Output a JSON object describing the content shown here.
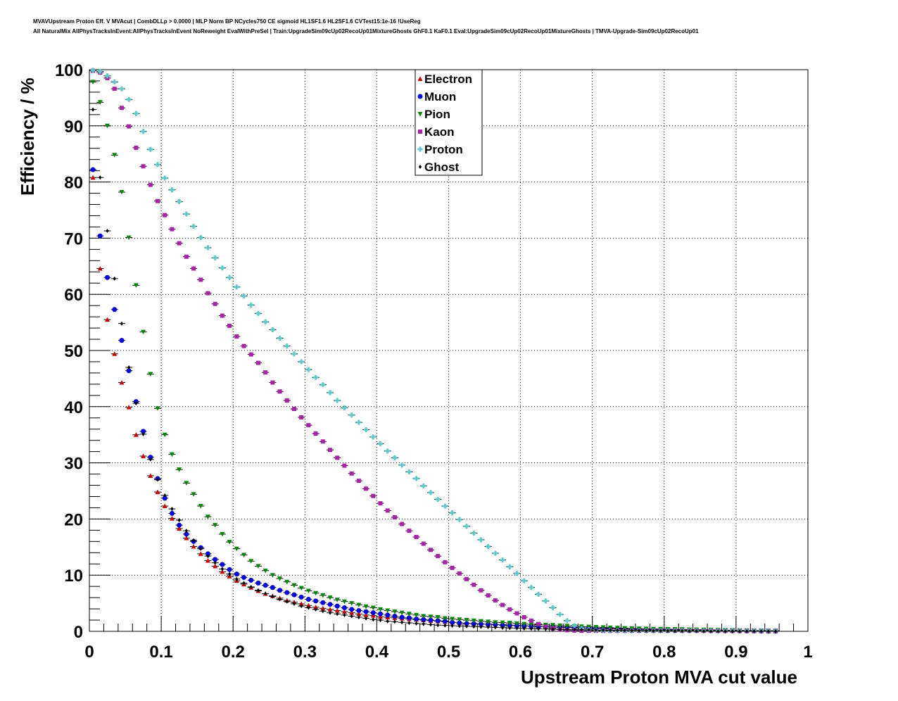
{
  "chart_data": {
    "type": "scatter",
    "title_line1": "MVAVUpstream Proton Eff. V MVAcut | CombDLLp > 0.0000 | MLP Norm BP NCycles750 CE sigmoid HL1SF1.6 HL2SF1.6 CVTest15:1e-16 !UseReg",
    "title_line2": "All NaturalMix AllPhysTracksInEvent:AllPhysTracksInEvent NoReweight EvalWithPreSel | Train:UpgradeSim09cUp02RecoUp01MixtureGhosts GhF0.1 KaF0.1 Eval:UpgradeSim09cUp02RecoUp01MixtureGhosts | TMVA-Upgrade-Sim09cUp02RecoUp01",
    "xlabel": "Upstream Proton MVA cut value",
    "ylabel": "Efficiency / %",
    "xlim": [
      0,
      1
    ],
    "ylim": [
      0,
      100
    ],
    "x_ticks": [
      "0",
      "0.1",
      "0.2",
      "0.3",
      "0.4",
      "0.5",
      "0.6",
      "0.7",
      "0.8",
      "0.9",
      "1"
    ],
    "y_ticks": [
      "0",
      "10",
      "20",
      "30",
      "40",
      "50",
      "60",
      "70",
      "80",
      "90",
      "100"
    ],
    "grid": true,
    "legend_position": "top-center",
    "x": [
      0.005,
      0.015,
      0.025,
      0.035,
      0.045,
      0.055,
      0.065,
      0.075,
      0.085,
      0.095,
      0.105,
      0.115,
      0.125,
      0.135,
      0.145,
      0.155,
      0.165,
      0.175,
      0.185,
      0.195,
      0.205,
      0.215,
      0.225,
      0.235,
      0.245,
      0.255,
      0.265,
      0.275,
      0.285,
      0.295,
      0.305,
      0.315,
      0.325,
      0.335,
      0.345,
      0.355,
      0.365,
      0.375,
      0.385,
      0.395,
      0.405,
      0.415,
      0.425,
      0.435,
      0.445,
      0.455,
      0.465,
      0.475,
      0.485,
      0.495,
      0.505,
      0.515,
      0.525,
      0.535,
      0.545,
      0.555,
      0.565,
      0.575,
      0.585,
      0.595,
      0.605,
      0.615,
      0.625,
      0.635,
      0.645,
      0.655,
      0.665,
      0.675,
      0.685,
      0.695,
      0.705,
      0.715,
      0.725,
      0.735,
      0.745,
      0.755,
      0.765,
      0.775,
      0.785,
      0.795,
      0.805,
      0.815,
      0.825,
      0.835,
      0.845,
      0.855,
      0.865,
      0.875,
      0.885,
      0.895,
      0.905,
      0.915,
      0.925,
      0.935,
      0.945,
      0.955
    ],
    "series": [
      {
        "name": "Electron",
        "color": "#cc0000",
        "marker": "triangle-up",
        "values": [
          80.8,
          64.6,
          55.5,
          49.4,
          44.3,
          39.9,
          35.0,
          31.2,
          27.7,
          24.8,
          22.3,
          20.1,
          18.3,
          16.6,
          15.1,
          13.8,
          12.6,
          11.6,
          10.6,
          9.8,
          9.0,
          8.4,
          7.8,
          7.2,
          6.7,
          6.3,
          5.9,
          5.5,
          5.2,
          4.9,
          4.6,
          4.3,
          4.1,
          3.9,
          3.7,
          3.5,
          3.3,
          3.1,
          2.9,
          2.8,
          2.6,
          2.5,
          2.4,
          2.3,
          2.2,
          2.1,
          2.0,
          1.9,
          1.8,
          1.7,
          1.6,
          1.5,
          1.45,
          1.4,
          1.3,
          1.25,
          1.2,
          1.15,
          1.1,
          1.05,
          1.0,
          0.95,
          0.9,
          0.85,
          0.8,
          0.76,
          0.72,
          0.68,
          0.64,
          0.6,
          0.56,
          0.53,
          0.5,
          0.47,
          0.44,
          0.41,
          0.38,
          0.36,
          0.34,
          0.32,
          0.3,
          0.28,
          0.26,
          0.24,
          0.22,
          0.2,
          0.18,
          0.16,
          0.14,
          0.12,
          0.1,
          0.08,
          0.07,
          0.06,
          0.05,
          0.04
        ]
      },
      {
        "name": "Muon",
        "color": "#0000dd",
        "marker": "circle",
        "values": [
          82.2,
          70.4,
          63.0,
          57.3,
          51.8,
          46.4,
          40.9,
          35.6,
          31.0,
          27.2,
          23.7,
          21.0,
          18.9,
          17.3,
          16.0,
          14.9,
          13.8,
          12.8,
          11.9,
          11.0,
          10.2,
          9.6,
          9.1,
          8.6,
          8.2,
          7.8,
          7.3,
          6.9,
          6.5,
          6.1,
          5.7,
          5.4,
          5.1,
          4.8,
          4.5,
          4.2,
          3.9,
          3.7,
          3.5,
          3.3,
          3.1,
          2.9,
          2.7,
          2.5,
          2.4,
          2.2,
          2.1,
          2.0,
          1.9,
          1.8,
          1.6,
          1.5,
          1.4,
          1.35,
          1.3,
          1.25,
          1.2,
          1.1,
          1.05,
          1.0,
          0.95,
          0.9,
          0.85,
          0.8,
          0.75,
          0.7,
          0.65,
          0.6,
          0.56,
          0.52,
          0.48,
          0.45,
          0.42,
          0.39,
          0.36,
          0.33,
          0.3,
          0.28,
          0.26,
          0.24,
          0.22,
          0.2,
          0.18,
          0.16,
          0.14,
          0.12,
          0.1,
          0.09,
          0.08,
          0.07,
          0.06,
          0.05,
          0.04,
          0.03,
          0.02,
          0.01
        ]
      },
      {
        "name": "Pion",
        "color": "#008800",
        "marker": "triangle-down",
        "values": [
          97.8,
          94.2,
          90.0,
          84.8,
          78.2,
          70.1,
          61.6,
          53.3,
          45.8,
          39.7,
          35.0,
          31.5,
          28.8,
          26.4,
          24.4,
          22.3,
          20.4,
          18.9,
          17.3,
          15.9,
          14.7,
          13.6,
          12.5,
          11.6,
          10.8,
          10.0,
          9.4,
          8.8,
          8.2,
          7.7,
          7.2,
          6.8,
          6.4,
          6.0,
          5.6,
          5.3,
          5.0,
          4.7,
          4.4,
          4.2,
          3.9,
          3.7,
          3.5,
          3.3,
          3.1,
          2.9,
          2.7,
          2.6,
          2.5,
          2.3,
          2.2,
          2.1,
          2.0,
          1.9,
          1.8,
          1.7,
          1.6,
          1.55,
          1.5,
          1.4,
          1.3,
          1.25,
          1.2,
          1.15,
          1.1,
          1.0,
          0.95,
          0.9,
          0.85,
          0.8,
          0.75,
          0.7,
          0.65,
          0.6,
          0.55,
          0.5,
          0.48,
          0.45,
          0.42,
          0.4,
          0.38,
          0.36,
          0.34,
          0.32,
          0.3,
          0.28,
          0.26,
          0.24,
          0.22,
          0.2,
          0.18,
          0.16,
          0.14,
          0.12,
          0.1,
          0.08
        ]
      },
      {
        "name": "Kaon",
        "color": "#aa22aa",
        "marker": "square",
        "values": [
          99.8,
          99.5,
          98.5,
          96.6,
          93.2,
          89.9,
          86.1,
          82.8,
          79.5,
          76.6,
          74.1,
          71.6,
          69.1,
          66.7,
          64.6,
          62.6,
          60.2,
          58.3,
          56.2,
          54.4,
          52.5,
          50.8,
          49.3,
          47.8,
          46.1,
          44.3,
          42.7,
          41.1,
          39.6,
          38.1,
          36.7,
          35.2,
          33.8,
          32.3,
          30.9,
          29.5,
          28.1,
          26.8,
          25.4,
          24.1,
          22.8,
          21.5,
          20.3,
          19.1,
          17.9,
          16.8,
          15.6,
          14.5,
          13.4,
          12.3,
          11.3,
          10.3,
          9.3,
          8.3,
          7.3,
          6.4,
          5.5,
          4.7,
          3.9,
          3.2,
          2.5,
          1.9,
          1.3,
          0.8,
          0.5,
          0.3,
          0.2,
          0.15,
          0.1,
          0.1,
          0.1,
          0.1,
          0.1,
          0.1,
          0.1,
          0.1,
          0.1,
          0.1,
          0.1,
          0.1,
          0.1,
          0.1,
          0.1,
          0.1,
          0.1,
          0.1,
          0.1,
          0.1,
          0.1,
          0.1,
          0.1,
          0.1,
          0.1,
          0.1,
          0.1,
          0.1
        ]
      },
      {
        "name": "Proton",
        "color": "#5fc8c8",
        "marker": "cross",
        "values": [
          99.9,
          99.7,
          98.9,
          97.8,
          96.6,
          94.7,
          92.2,
          89.0,
          85.8,
          83.1,
          80.7,
          78.6,
          76.5,
          74.3,
          72.1,
          70.1,
          68.3,
          66.5,
          64.7,
          63.0,
          61.3,
          59.7,
          58.1,
          56.6,
          55.1,
          53.7,
          52.2,
          50.8,
          49.4,
          48.0,
          46.6,
          45.2,
          43.9,
          42.5,
          41.1,
          39.8,
          38.5,
          37.2,
          35.9,
          34.6,
          33.4,
          32.1,
          30.9,
          29.6,
          28.4,
          27.2,
          25.9,
          24.7,
          23.5,
          22.3,
          21.1,
          19.9,
          18.7,
          17.5,
          16.3,
          15.1,
          13.9,
          12.7,
          11.5,
          10.3,
          9.0,
          7.8,
          6.6,
          5.4,
          4.2,
          3.0,
          1.9,
          1.0,
          0.5,
          0.3,
          0.2,
          0.15,
          0.1,
          0.1,
          0.1,
          0.1,
          0.1,
          0.1,
          0.1,
          0.1,
          0.1,
          0.1,
          0.1,
          0.1,
          0.1,
          0.1,
          0.1,
          0.1,
          0.1,
          0.1,
          0.1,
          0.1,
          0.1,
          0.1,
          0.1,
          0.1
        ]
      },
      {
        "name": "Ghost",
        "color": "#000000",
        "marker": "diamond",
        "values": [
          92.9,
          80.8,
          71.3,
          62.8,
          54.8,
          47.0,
          40.6,
          35.1,
          30.6,
          27.0,
          24.2,
          21.8,
          19.8,
          17.9,
          16.2,
          14.7,
          13.4,
          12.2,
          11.1,
          10.2,
          9.3,
          8.6,
          7.9,
          7.3,
          6.7,
          6.2,
          5.7,
          5.3,
          4.9,
          4.5,
          4.2,
          3.9,
          3.6,
          3.3,
          3.1,
          2.9,
          2.7,
          2.5,
          2.3,
          2.1,
          2.0,
          1.8,
          1.7,
          1.6,
          1.5,
          1.4,
          1.3,
          1.2,
          1.1,
          1.05,
          1.0,
          0.95,
          0.9,
          0.85,
          0.8,
          0.75,
          0.7,
          0.65,
          0.6,
          0.55,
          0.5,
          0.47,
          0.44,
          0.41,
          0.38,
          0.35,
          0.32,
          0.3,
          0.28,
          0.26,
          0.24,
          0.22,
          0.2,
          0.18,
          0.16,
          0.14,
          0.12,
          0.11,
          0.1,
          0.09,
          0.08,
          0.07,
          0.06,
          0.05,
          0.04,
          0.03,
          0.02,
          0.02,
          0.02,
          0.01,
          0.01,
          0.01,
          0.01,
          0.01,
          0.01,
          0.01
        ]
      }
    ]
  }
}
